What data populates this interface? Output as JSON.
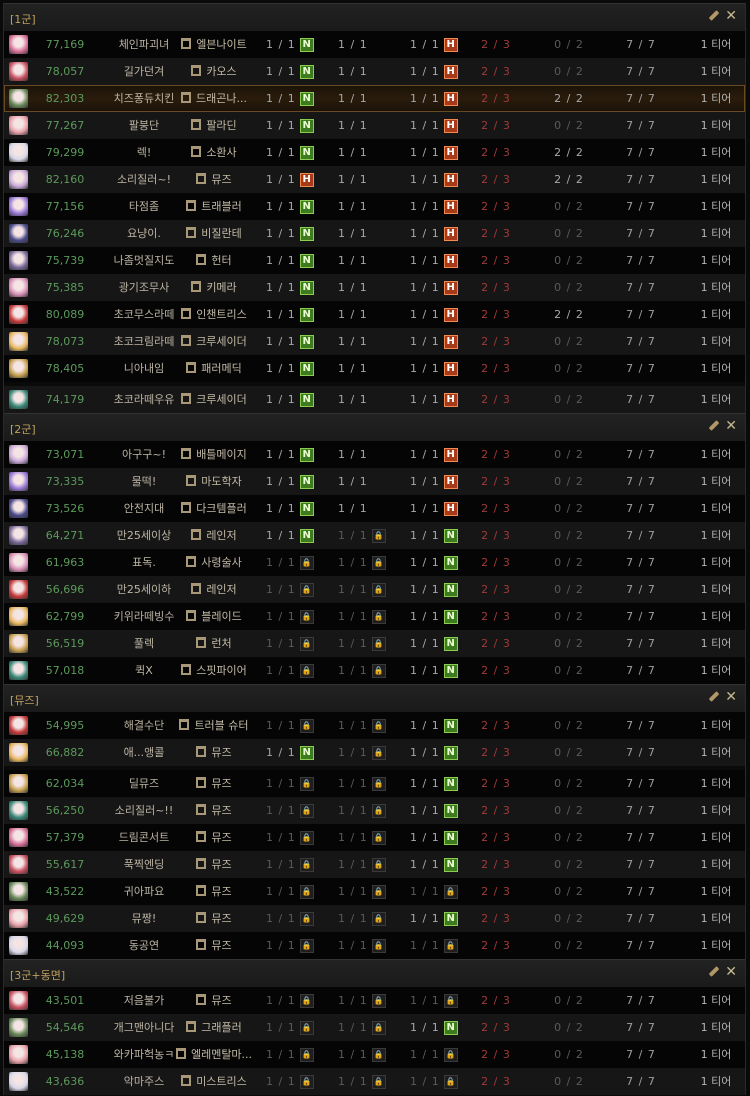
{
  "colors": {
    "score": "#5c9a5c",
    "section_title": "#c0a060",
    "badge_n": "#3e7a1e",
    "badge_h": "#a83a1a",
    "fraction_red": "#a03a3a"
  },
  "icons": {
    "edit": "pencil-icon",
    "close": "close-x-icon",
    "class": "class-emblem-icon",
    "lock": "lock-icon"
  },
  "sections": [
    {
      "title": "[1군]",
      "rows": [
        {
          "score": "77,169",
          "name": "체인파괴녀",
          "class": "엘븐나이트",
          "slots": [
            [
              "1 / 1",
              "N"
            ],
            [
              "1 / 1",
              null
            ],
            [
              "1 / 1",
              "H"
            ]
          ],
          "c4": "2 / 3",
          "c5": "0 / 2",
          "c6": "7 / 7",
          "tier": "1 티어"
        },
        {
          "score": "78,057",
          "name": "길가던겨",
          "class": "카오스",
          "slots": [
            [
              "1 / 1",
              "N"
            ],
            [
              "1 / 1",
              null
            ],
            [
              "1 / 1",
              "H"
            ]
          ],
          "c4": "2 / 3",
          "c5": "0 / 2",
          "c6": "7 / 7",
          "tier": "1 티어"
        },
        {
          "score": "82,303",
          "name": "치즈퐁듀치킨",
          "class": "드래곤나...",
          "selected": true,
          "slots": [
            [
              "1 / 1",
              "N"
            ],
            [
              "1 / 1",
              null
            ],
            [
              "1 / 1",
              "H"
            ]
          ],
          "c4": "2 / 3",
          "c5": "2 / 2",
          "c6": "7 / 7",
          "tier": "1 티어"
        },
        {
          "score": "77,267",
          "name": "팔붕단",
          "class": "팔라딘",
          "slots": [
            [
              "1 / 1",
              "N"
            ],
            [
              "1 / 1",
              null
            ],
            [
              "1 / 1",
              "H"
            ]
          ],
          "c4": "2 / 3",
          "c5": "0 / 2",
          "c6": "7 / 7",
          "tier": "1 티어"
        },
        {
          "score": "79,299",
          "name": "렉!",
          "class": "소환사",
          "slots": [
            [
              "1 / 1",
              "N"
            ],
            [
              "1 / 1",
              null
            ],
            [
              "1 / 1",
              "H"
            ]
          ],
          "c4": "2 / 3",
          "c5": "2 / 2",
          "c6": "7 / 7",
          "tier": "1 티어"
        },
        {
          "score": "82,160",
          "name": "소리질러~!",
          "class": "뮤즈",
          "slots": [
            [
              "1 / 1",
              "H"
            ],
            [
              "1 / 1",
              null
            ],
            [
              "1 / 1",
              "H"
            ]
          ],
          "c4": "2 / 3",
          "c5": "2 / 2",
          "c6": "7 / 7",
          "tier": "1 티어"
        },
        {
          "score": "77,156",
          "name": "타점좀",
          "class": "트래블러",
          "slots": [
            [
              "1 / 1",
              "N"
            ],
            [
              "1 / 1",
              null
            ],
            [
              "1 / 1",
              "H"
            ]
          ],
          "c4": "2 / 3",
          "c5": "0 / 2",
          "c6": "7 / 7",
          "tier": "1 티어"
        },
        {
          "score": "76,246",
          "name": "요냥이.",
          "class": "비질란테",
          "slots": [
            [
              "1 / 1",
              "N"
            ],
            [
              "1 / 1",
              null
            ],
            [
              "1 / 1",
              "H"
            ]
          ],
          "c4": "2 / 3",
          "c5": "0 / 2",
          "c6": "7 / 7",
          "tier": "1 티어"
        },
        {
          "score": "75,739",
          "name": "나좀멋질지도",
          "class": "헌터",
          "slots": [
            [
              "1 / 1",
              "N"
            ],
            [
              "1 / 1",
              null
            ],
            [
              "1 / 1",
              "H"
            ]
          ],
          "c4": "2 / 3",
          "c5": "0 / 2",
          "c6": "7 / 7",
          "tier": "1 티어"
        },
        {
          "score": "75,385",
          "name": "광기조무사",
          "class": "키메라",
          "slots": [
            [
              "1 / 1",
              "N"
            ],
            [
              "1 / 1",
              null
            ],
            [
              "1 / 1",
              "H"
            ]
          ],
          "c4": "2 / 3",
          "c5": "0 / 2",
          "c6": "7 / 7",
          "tier": "1 티어"
        },
        {
          "score": "80,089",
          "name": "초코무스라떼",
          "class": "인챈트리스",
          "slots": [
            [
              "1 / 1",
              "N"
            ],
            [
              "1 / 1",
              null
            ],
            [
              "1 / 1",
              "H"
            ]
          ],
          "c4": "2 / 3",
          "c5": "2 / 2",
          "c6": "7 / 7",
          "tier": "1 티어"
        },
        {
          "score": "78,073",
          "name": "초코크림라떼",
          "class": "크루세이더",
          "slots": [
            [
              "1 / 1",
              "N"
            ],
            [
              "1 / 1",
              null
            ],
            [
              "1 / 1",
              "H"
            ]
          ],
          "c4": "2 / 3",
          "c5": "0 / 2",
          "c6": "7 / 7",
          "tier": "1 티어"
        },
        {
          "score": "78,405",
          "name": "니아내임",
          "class": "패러메딕",
          "slots": [
            [
              "1 / 1",
              "N"
            ],
            [
              "1 / 1",
              null
            ],
            [
              "1 / 1",
              "H"
            ]
          ],
          "c4": "2 / 3",
          "c5": "0 / 2",
          "c6": "7 / 7",
          "tier": "1 티어"
        },
        {
          "score": "74,179",
          "name": "초코라떼우유",
          "class": "크루세이더",
          "slots": [
            [
              "1 / 1",
              "N"
            ],
            [
              "1 / 1",
              null
            ],
            [
              "1 / 1",
              "H"
            ]
          ],
          "c4": "2 / 3",
          "c5": "0 / 2",
          "c6": "7 / 7",
          "tier": "1 티어"
        }
      ]
    },
    {
      "title": "[2군]",
      "rows": [
        {
          "score": "73,071",
          "name": "아구구~!",
          "class": "배틀메이지",
          "slots": [
            [
              "1 / 1",
              "N"
            ],
            [
              "1 / 1",
              null
            ],
            [
              "1 / 1",
              "H"
            ]
          ],
          "c4": "2 / 3",
          "c5": "0 / 2",
          "c6": "7 / 7",
          "tier": "1 티어"
        },
        {
          "score": "73,335",
          "name": "물떡!",
          "class": "마도학자",
          "slots": [
            [
              "1 / 1",
              "N"
            ],
            [
              "1 / 1",
              null
            ],
            [
              "1 / 1",
              "H"
            ]
          ],
          "c4": "2 / 3",
          "c5": "0 / 2",
          "c6": "7 / 7",
          "tier": "1 티어"
        },
        {
          "score": "73,526",
          "name": "안전지대",
          "class": "다크템플러",
          "slots": [
            [
              "1 / 1",
              "N"
            ],
            [
              "1 / 1",
              null
            ],
            [
              "1 / 1",
              "H"
            ]
          ],
          "c4": "2 / 3",
          "c5": "0 / 2",
          "c6": "7 / 7",
          "tier": "1 티어"
        },
        {
          "score": "64,271",
          "name": "만25세이상",
          "class": "레인저",
          "slots": [
            [
              "1 / 1",
              "N"
            ],
            [
              "1 / 1",
              "lock"
            ],
            [
              "1 / 1",
              "N"
            ]
          ],
          "c4": "2 / 3",
          "c5": "0 / 2",
          "c6": "7 / 7",
          "tier": "1 티어"
        },
        {
          "score": "61,963",
          "name": "표독.",
          "class": "사령술사",
          "slots": [
            [
              "1 / 1",
              "lock"
            ],
            [
              "1 / 1",
              "lock"
            ],
            [
              "1 / 1",
              "N"
            ]
          ],
          "c4": "2 / 3",
          "c5": "0 / 2",
          "c6": "7 / 7",
          "tier": "1 티어"
        },
        {
          "score": "56,696",
          "name": "만25세이하",
          "class": "레인저",
          "slots": [
            [
              "1 / 1",
              "lock"
            ],
            [
              "1 / 1",
              "lock"
            ],
            [
              "1 / 1",
              "N"
            ]
          ],
          "c4": "2 / 3",
          "c5": "0 / 2",
          "c6": "7 / 7",
          "tier": "1 티어"
        },
        {
          "score": "62,799",
          "name": "키위라떼빙수",
          "class": "블레이드",
          "slots": [
            [
              "1 / 1",
              "lock"
            ],
            [
              "1 / 1",
              "lock"
            ],
            [
              "1 / 1",
              "N"
            ]
          ],
          "c4": "2 / 3",
          "c5": "0 / 2",
          "c6": "7 / 7",
          "tier": "1 티어"
        },
        {
          "score": "56,519",
          "name": "풀렉",
          "class": "런처",
          "slots": [
            [
              "1 / 1",
              "lock"
            ],
            [
              "1 / 1",
              "lock"
            ],
            [
              "1 / 1",
              "N"
            ]
          ],
          "c4": "2 / 3",
          "c5": "0 / 2",
          "c6": "7 / 7",
          "tier": "1 티어"
        },
        {
          "score": "57,018",
          "name": "퀵X",
          "class": "스핏파이어",
          "slots": [
            [
              "1 / 1",
              "lock"
            ],
            [
              "1 / 1",
              "lock"
            ],
            [
              "1 / 1",
              "N"
            ]
          ],
          "c4": "2 / 3",
          "c5": "0 / 2",
          "c6": "7 / 7",
          "tier": "1 티어"
        }
      ]
    },
    {
      "title": "[뮤즈]",
      "rows": [
        {
          "score": "54,995",
          "name": "해결수단",
          "class": "트러블 슈터",
          "slots": [
            [
              "1 / 1",
              "lock"
            ],
            [
              "1 / 1",
              "lock"
            ],
            [
              "1 / 1",
              "N"
            ]
          ],
          "c4": "2 / 3",
          "c5": "0 / 2",
          "c6": "7 / 7",
          "tier": "1 티어"
        },
        {
          "score": "66,882",
          "name": "애...앵콜",
          "class": "뮤즈",
          "slots": [
            [
              "1 / 1",
              "N"
            ],
            [
              "1 / 1",
              "lock"
            ],
            [
              "1 / 1",
              "N"
            ]
          ],
          "c4": "2 / 3",
          "c5": "0 / 2",
          "c6": "7 / 7",
          "tier": "1 티어"
        },
        {
          "score": "62,034",
          "name": "딜뮤즈",
          "class": "뮤즈",
          "slots": [
            [
              "1 / 1",
              "lock"
            ],
            [
              "1 / 1",
              "lock"
            ],
            [
              "1 / 1",
              "N"
            ]
          ],
          "c4": "2 / 3",
          "c5": "0 / 2",
          "c6": "7 / 7",
          "tier": "1 티어"
        },
        {
          "score": "56,250",
          "name": "소리질러~!!",
          "class": "뮤즈",
          "slots": [
            [
              "1 / 1",
              "lock"
            ],
            [
              "1 / 1",
              "lock"
            ],
            [
              "1 / 1",
              "N"
            ]
          ],
          "c4": "2 / 3",
          "c5": "0 / 2",
          "c6": "7 / 7",
          "tier": "1 티어"
        },
        {
          "score": "57,379",
          "name": "드림콘서트",
          "class": "뮤즈",
          "slots": [
            [
              "1 / 1",
              "lock"
            ],
            [
              "1 / 1",
              "lock"
            ],
            [
              "1 / 1",
              "N"
            ]
          ],
          "c4": "2 / 3",
          "c5": "0 / 2",
          "c6": "7 / 7",
          "tier": "1 티어"
        },
        {
          "score": "55,617",
          "name": "푹찍엔딩",
          "class": "뮤즈",
          "slots": [
            [
              "1 / 1",
              "lock"
            ],
            [
              "1 / 1",
              "lock"
            ],
            [
              "1 / 1",
              "N"
            ]
          ],
          "c4": "2 / 3",
          "c5": "0 / 2",
          "c6": "7 / 7",
          "tier": "1 티어"
        },
        {
          "score": "43,522",
          "name": "귀아파요",
          "class": "뮤즈",
          "slots": [
            [
              "1 / 1",
              "lock"
            ],
            [
              "1 / 1",
              "lock"
            ],
            [
              "1 / 1",
              "lock"
            ]
          ],
          "c4": "2 / 3",
          "c5": "0 / 2",
          "c6": "7 / 7",
          "tier": "1 티어"
        },
        {
          "score": "49,629",
          "name": "뮤짱!",
          "class": "뮤즈",
          "slots": [
            [
              "1 / 1",
              "lock"
            ],
            [
              "1 / 1",
              "lock"
            ],
            [
              "1 / 1",
              "N"
            ]
          ],
          "c4": "2 / 3",
          "c5": "0 / 2",
          "c6": "7 / 7",
          "tier": "1 티어"
        },
        {
          "score": "44,093",
          "name": "동공연",
          "class": "뮤즈",
          "slots": [
            [
              "1 / 1",
              "lock"
            ],
            [
              "1 / 1",
              "lock"
            ],
            [
              "1 / 1",
              "lock"
            ]
          ],
          "c4": "2 / 3",
          "c5": "0 / 2",
          "c6": "7 / 7",
          "tier": "1 티어"
        }
      ]
    },
    {
      "title": "[3군+동면]",
      "rows": [
        {
          "score": "43,501",
          "name": "저음불가",
          "class": "뮤즈",
          "slots": [
            [
              "1 / 1",
              "lock"
            ],
            [
              "1 / 1",
              "lock"
            ],
            [
              "1 / 1",
              "lock"
            ]
          ],
          "c4": "2 / 3",
          "c5": "0 / 2",
          "c6": "7 / 7",
          "tier": "1 티어"
        },
        {
          "score": "54,546",
          "name": "개그맨아니다",
          "class": "그래플러",
          "slots": [
            [
              "1 / 1",
              "lock"
            ],
            [
              "1 / 1",
              "lock"
            ],
            [
              "1 / 1",
              "N"
            ]
          ],
          "c4": "2 / 3",
          "c5": "0 / 2",
          "c6": "7 / 7",
          "tier": "1 티어"
        },
        {
          "score": "45,138",
          "name": "와카파헉농ㅋ",
          "class": "엘레멘탈마...",
          "slots": [
            [
              "1 / 1",
              "lock"
            ],
            [
              "1 / 1",
              "lock"
            ],
            [
              "1 / 1",
              "lock"
            ]
          ],
          "c4": "2 / 3",
          "c5": "0 / 2",
          "c6": "7 / 7",
          "tier": "1 티어"
        },
        {
          "score": "43,636",
          "name": "악마주스",
          "class": "미스트리스",
          "slots": [
            [
              "1 / 1",
              "lock"
            ],
            [
              "1 / 1",
              "lock"
            ],
            [
              "1 / 1",
              "lock"
            ]
          ],
          "c4": "2 / 3",
          "c5": "0 / 2",
          "c6": "7 / 7",
          "tier": "1 티어"
        }
      ]
    }
  ]
}
